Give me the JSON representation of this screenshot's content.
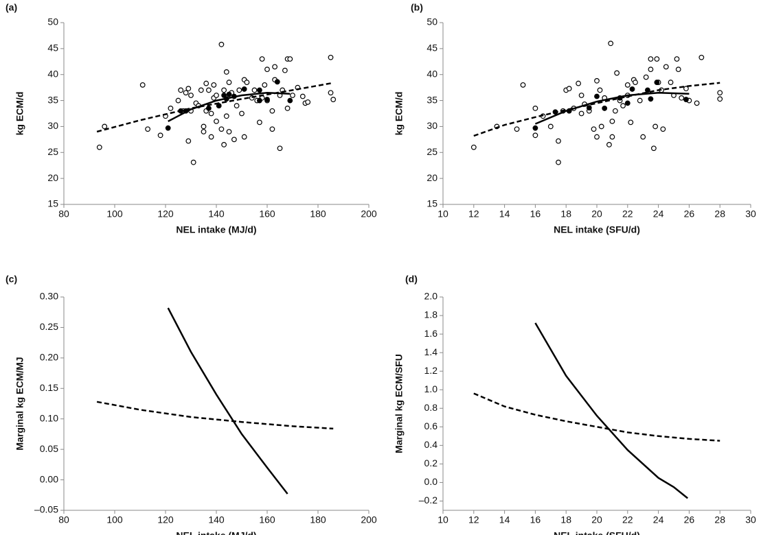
{
  "chart_data": [
    {
      "type": "scatter",
      "label": "(a)",
      "xlabel": "NEL intake (MJ/d)",
      "ylabel": "kg ECM/d",
      "xlim": [
        80,
        200
      ],
      "xticks": [
        80,
        100,
        120,
        140,
        160,
        180,
        200
      ],
      "ylim": [
        15,
        50
      ],
      "yticks": [
        15,
        20,
        25,
        30,
        35,
        40,
        45,
        50
      ],
      "series": [
        {
          "marker": "open",
          "color": "#000000",
          "x": [
            94,
            96,
            111,
            113,
            118,
            120,
            122,
            125,
            126,
            127,
            128,
            129,
            129,
            130,
            130,
            131,
            132,
            133,
            134,
            135,
            135,
            136,
            136,
            137,
            138,
            138,
            139,
            139,
            140,
            140,
            141,
            142,
            142,
            143,
            143,
            144,
            144,
            145,
            145,
            146,
            147,
            148,
            149,
            150,
            151,
            151,
            152,
            154,
            155,
            156,
            157,
            158,
            158,
            159,
            160,
            160,
            162,
            162,
            163,
            163,
            165,
            165,
            166,
            167,
            168,
            168,
            169,
            170,
            172,
            174,
            175,
            176,
            185,
            186,
            185
          ],
          "values": [
            26,
            30,
            38,
            29.5,
            28.3,
            32,
            33.5,
            35,
            37,
            33,
            36.5,
            27.2,
            37.3,
            36,
            33,
            23.1,
            34.5,
            34,
            37,
            30,
            29,
            33,
            38.3,
            37,
            32.5,
            28,
            35.5,
            38,
            36,
            31,
            34,
            45.8,
            29.5,
            26.5,
            37,
            40.5,
            32,
            29,
            38.5,
            36.5,
            27.5,
            34,
            37,
            32.5,
            39,
            28,
            38.5,
            35.5,
            37,
            35,
            30.8,
            43,
            35.5,
            38,
            41,
            35,
            29.5,
            33,
            41.5,
            39,
            25.8,
            36,
            37,
            40.8,
            43,
            33.5,
            43,
            36,
            37.5,
            35.8,
            34.5,
            34.7,
            36.5,
            35.2,
            43.3
          ]
        },
        {
          "marker": "filled",
          "color": "#000000",
          "x": [
            121,
            126,
            128,
            137,
            141,
            143,
            144,
            145,
            147,
            151,
            157,
            157,
            160,
            164,
            169
          ],
          "values": [
            29.7,
            33,
            33,
            33.5,
            34,
            36,
            35.3,
            36.2,
            35.8,
            37.2,
            37,
            35,
            35.2,
            38.6,
            35
          ]
        },
        {
          "line": "dashed",
          "color": "#000000",
          "x": [
            93,
            110,
            130,
            150,
            170,
            186
          ],
          "values": [
            29,
            31.2,
            33.5,
            35.3,
            37,
            38.4
          ]
        },
        {
          "line": "solid",
          "color": "#000000",
          "x": [
            121,
            130,
            140,
            150,
            160,
            169
          ],
          "values": [
            31,
            33.3,
            35,
            36,
            36.5,
            36.3
          ]
        }
      ]
    },
    {
      "type": "scatter",
      "label": "(b)",
      "xlabel": "NEL intake (SFU/d)",
      "ylabel": "kg ECM/d",
      "xlim": [
        10,
        30
      ],
      "xticks": [
        10,
        12,
        14,
        16,
        18,
        20,
        22,
        24,
        26,
        28,
        30
      ],
      "ylim": [
        15,
        50
      ],
      "yticks": [
        15,
        20,
        25,
        30,
        35,
        40,
        45,
        50
      ],
      "series": [
        {
          "marker": "open",
          "color": "#000000",
          "x": [
            12,
            13.5,
            15.2,
            14.8,
            16,
            16,
            16.5,
            17,
            17.5,
            17.5,
            17.8,
            18,
            18.2,
            18.5,
            18.8,
            19,
            19,
            19.2,
            19.5,
            19.8,
            20,
            20,
            20.2,
            20.3,
            20.5,
            20.8,
            20.9,
            21,
            21,
            21.2,
            21.3,
            21.5,
            21.7,
            22,
            22,
            22.2,
            22.4,
            22.5,
            22.8,
            23,
            23.2,
            23.5,
            23.5,
            23.7,
            23.8,
            23.9,
            24,
            24.2,
            24.3,
            24.5,
            24.8,
            25,
            25.2,
            25.3,
            25.5,
            25.8,
            26,
            26.5,
            26.8,
            28,
            28
          ],
          "values": [
            26,
            30,
            38,
            29.5,
            28.3,
            33.5,
            32,
            30,
            23.1,
            27.2,
            33,
            37,
            37.3,
            33.5,
            38.3,
            36,
            32.5,
            34.3,
            33,
            29.5,
            28,
            38.8,
            37,
            30,
            35.5,
            26.5,
            46,
            28,
            31,
            33,
            40.3,
            35,
            34,
            38,
            36,
            30.8,
            39,
            38.5,
            35,
            28,
            39.5,
            43,
            41,
            25.8,
            30,
            43,
            38.5,
            37,
            29.5,
            41.5,
            38.5,
            36,
            43,
            41,
            35.5,
            37.3,
            35,
            34.5,
            43.3,
            36.5,
            35.3
          ]
        },
        {
          "marker": "filled",
          "color": "#000000",
          "x": [
            16,
            17.3,
            18.2,
            19.5,
            20,
            20.5,
            21.5,
            22,
            22.3,
            23.3,
            23.5,
            23.9,
            25.8
          ],
          "values": [
            29.7,
            32.8,
            33,
            33.6,
            35.8,
            33.5,
            35.5,
            34.5,
            37.2,
            37,
            35.3,
            38.5,
            35.2
          ]
        },
        {
          "line": "dashed",
          "color": "#000000",
          "x": [
            12,
            14,
            16,
            18,
            20,
            22,
            24,
            26,
            28
          ],
          "values": [
            28.2,
            30.3,
            31.8,
            33.2,
            34.5,
            35.8,
            37,
            37.8,
            38.4
          ]
        },
        {
          "line": "solid",
          "color": "#000000",
          "x": [
            16,
            18,
            20,
            22,
            24,
            26
          ],
          "values": [
            30.5,
            33,
            34.8,
            36,
            36.5,
            36.3
          ]
        }
      ]
    },
    {
      "type": "line",
      "label": "(c)",
      "xlabel": "NEL intake (MJ/d)",
      "ylabel": "Marginal kg ECM/MJ",
      "xlim": [
        80,
        200
      ],
      "xticks": [
        80,
        100,
        120,
        140,
        160,
        180,
        200
      ],
      "ylim": [
        -0.05,
        0.3
      ],
      "yticks": [
        {
          "value": -0.05,
          "label": "–0.05"
        },
        {
          "value": 0,
          "label": "0.00"
        },
        0.05,
        {
          "value": 0.1,
          "label": "0.10"
        },
        0.15,
        {
          "value": 0.2,
          "label": "0.20"
        },
        0.25,
        {
          "value": 0.3,
          "label": "0.30"
        }
      ],
      "series": [
        {
          "line": "dashed",
          "color": "#000000",
          "x": [
            93,
            110,
            130,
            150,
            170,
            186
          ],
          "values": [
            0.128,
            0.115,
            0.103,
            0.095,
            0.088,
            0.084
          ]
        },
        {
          "line": "solid",
          "color": "#000000",
          "x": [
            121,
            130,
            140,
            150,
            160,
            168
          ],
          "values": [
            0.282,
            0.21,
            0.14,
            0.075,
            0.02,
            -0.023
          ]
        }
      ]
    },
    {
      "type": "line",
      "label": "(d)",
      "xlabel": "NEL intake (SFU/d)",
      "ylabel": "Marginal kg ECM/SFU",
      "xlim": [
        10,
        30
      ],
      "xticks": [
        10,
        12,
        14,
        16,
        18,
        20,
        22,
        24,
        26,
        28,
        30
      ],
      "ylim": [
        -0.3,
        2.0
      ],
      "yticks": [
        {
          "value": -0.2,
          "label": "–0.2"
        },
        {
          "value": 0,
          "label": "0.0"
        },
        0.2,
        0.4,
        0.6,
        0.8,
        {
          "value": 1,
          "label": "1.0"
        },
        1.2,
        1.4,
        1.6,
        1.8,
        {
          "value": 2,
          "label": "2.0"
        }
      ],
      "series": [
        {
          "line": "dashed",
          "color": "#000000",
          "x": [
            12,
            14,
            16,
            18,
            20,
            22,
            24,
            26,
            28
          ],
          "values": [
            0.96,
            0.82,
            0.73,
            0.66,
            0.6,
            0.54,
            0.5,
            0.47,
            0.45
          ]
        },
        {
          "line": "solid",
          "color": "#000000",
          "x": [
            16,
            18,
            20,
            22,
            24,
            25,
            25.9
          ],
          "values": [
            1.72,
            1.15,
            0.72,
            0.35,
            0.05,
            -0.05,
            -0.17
          ]
        }
      ]
    }
  ]
}
